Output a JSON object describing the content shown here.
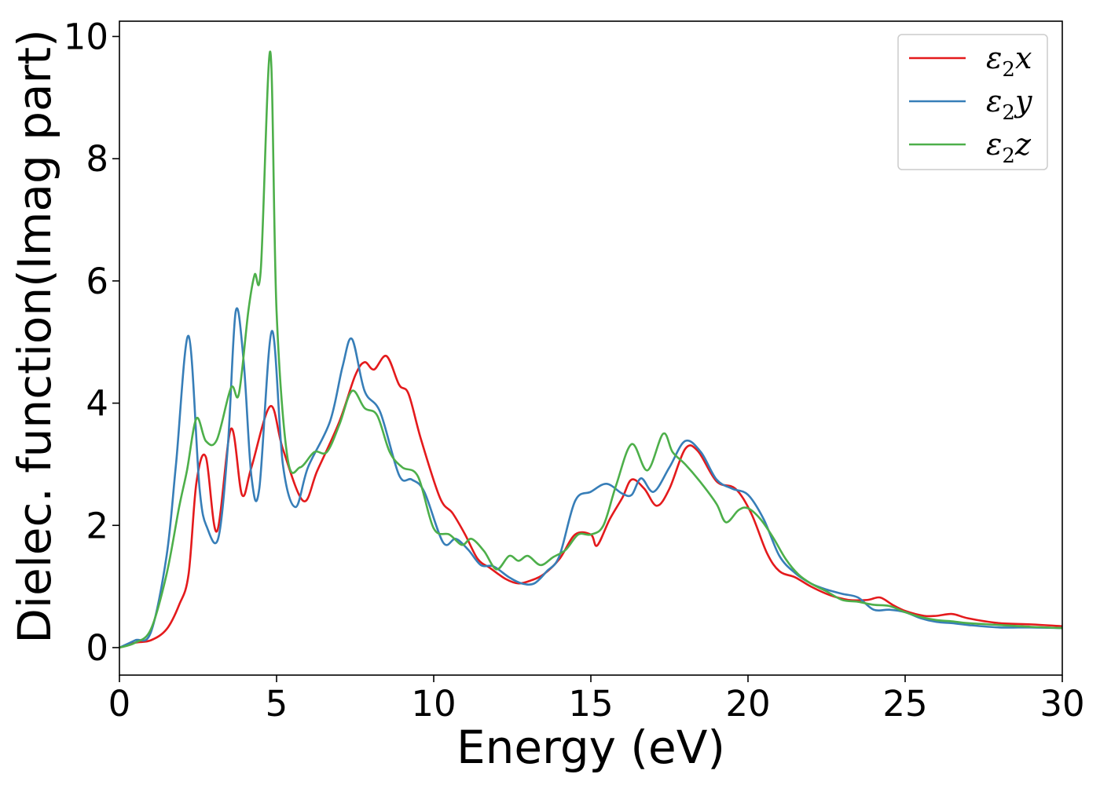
{
  "chart_data": {
    "type": "line",
    "xlabel": "Energy (eV)",
    "ylabel": "Dielec. function(Imag part)",
    "xlim": [
      0,
      30
    ],
    "ylim": [
      -0.45,
      10.25
    ],
    "xticks": [
      0,
      5,
      10,
      15,
      20,
      25,
      30
    ],
    "yticks": [
      0,
      2,
      4,
      6,
      8,
      10
    ],
    "grid": false,
    "legend_position": "top-right",
    "series": [
      {
        "name": "ε2x",
        "legend_base": "ε",
        "legend_sub": "2",
        "legend_suffix": "x",
        "color": "#e41a1c",
        "x": [
          0,
          0.5,
          1.0,
          1.5,
          1.9,
          2.2,
          2.45,
          2.75,
          3.1,
          3.55,
          3.9,
          4.2,
          4.8,
          5.2,
          5.85,
          6.3,
          7.0,
          7.5,
          7.8,
          8.1,
          8.5,
          8.9,
          9.2,
          9.6,
          10.2,
          10.6,
          11.0,
          11.4,
          11.8,
          12.3,
          12.7,
          13.1,
          13.5,
          14.0,
          14.5,
          15.0,
          15.2,
          15.6,
          16.0,
          16.3,
          16.7,
          17.1,
          17.5,
          18.0,
          18.4,
          19.0,
          19.6,
          20.1,
          20.6,
          21.0,
          21.5,
          22.0,
          22.6,
          23.2,
          23.8,
          24.2,
          24.6,
          25.0,
          25.6,
          26.0,
          26.5,
          27.0,
          28.0,
          29.0,
          30.0
        ],
        "values": [
          0,
          0.08,
          0.12,
          0.3,
          0.7,
          1.2,
          2.7,
          3.12,
          1.9,
          3.58,
          2.5,
          2.95,
          3.95,
          3.25,
          2.4,
          2.9,
          3.7,
          4.45,
          4.67,
          4.55,
          4.77,
          4.3,
          4.15,
          3.4,
          2.45,
          2.2,
          1.85,
          1.45,
          1.3,
          1.12,
          1.05,
          1.1,
          1.2,
          1.45,
          1.85,
          1.85,
          1.67,
          2.1,
          2.45,
          2.75,
          2.6,
          2.32,
          2.6,
          3.25,
          3.22,
          2.72,
          2.6,
          2.2,
          1.55,
          1.25,
          1.15,
          1.0,
          0.86,
          0.78,
          0.78,
          0.82,
          0.7,
          0.6,
          0.52,
          0.52,
          0.55,
          0.48,
          0.4,
          0.38,
          0.35
        ]
      },
      {
        "name": "ε2y",
        "legend_base": "ε",
        "legend_sub": "2",
        "legend_suffix": "y",
        "color": "#377eb8",
        "x": [
          0,
          0.5,
          1.0,
          1.5,
          1.8,
          2.2,
          2.55,
          2.8,
          3.15,
          3.45,
          3.7,
          3.95,
          4.2,
          4.45,
          4.85,
          5.2,
          5.6,
          6.0,
          6.7,
          7.1,
          7.4,
          7.8,
          8.3,
          8.9,
          9.3,
          9.7,
          10.3,
          10.7,
          11.1,
          11.5,
          11.9,
          12.4,
          12.8,
          13.2,
          13.6,
          14.0,
          14.5,
          15.0,
          15.5,
          16.0,
          16.3,
          16.6,
          17.0,
          17.5,
          18.0,
          18.5,
          19.0,
          19.5,
          20.0,
          20.5,
          21.0,
          21.5,
          22.0,
          22.5,
          23.0,
          23.5,
          24.0,
          24.5,
          25.0,
          25.5,
          26.0,
          26.5,
          27.0,
          28.0,
          29.0,
          30.0
        ],
        "values": [
          0,
          0.12,
          0.25,
          1.5,
          3.0,
          5.1,
          2.6,
          1.95,
          1.8,
          3.3,
          5.5,
          4.7,
          2.8,
          2.6,
          5.18,
          3.0,
          2.3,
          2.95,
          3.7,
          4.6,
          5.05,
          4.2,
          3.85,
          2.82,
          2.75,
          2.55,
          1.72,
          1.78,
          1.6,
          1.35,
          1.33,
          1.15,
          1.05,
          1.05,
          1.25,
          1.5,
          2.4,
          2.55,
          2.68,
          2.52,
          2.5,
          2.77,
          2.55,
          2.95,
          3.38,
          3.2,
          2.75,
          2.6,
          2.5,
          2.1,
          1.5,
          1.22,
          1.05,
          0.95,
          0.88,
          0.82,
          0.62,
          0.62,
          0.58,
          0.48,
          0.42,
          0.4,
          0.37,
          0.33,
          0.33,
          0.32
        ]
      },
      {
        "name": "ε2z",
        "legend_base": "ε",
        "legend_sub": "2",
        "legend_suffix": "z",
        "color": "#4daf4a",
        "x": [
          0,
          0.5,
          1.0,
          1.5,
          1.9,
          2.15,
          2.45,
          2.75,
          3.1,
          3.55,
          3.8,
          4.1,
          4.3,
          4.5,
          4.8,
          5.0,
          5.35,
          5.75,
          6.2,
          6.6,
          7.0,
          7.4,
          7.8,
          8.2,
          8.6,
          9.0,
          9.5,
          10.0,
          10.5,
          10.9,
          11.2,
          11.6,
          12.0,
          12.4,
          12.7,
          13.0,
          13.4,
          13.8,
          14.2,
          14.6,
          15.0,
          15.4,
          15.8,
          16.3,
          16.8,
          17.3,
          17.6,
          18.0,
          18.5,
          19.0,
          19.3,
          19.7,
          20.0,
          20.4,
          20.8,
          21.2,
          21.6,
          22.0,
          22.5,
          23.0,
          23.5,
          24.0,
          24.5,
          25.0,
          25.5,
          26.0,
          26.5,
          27.0,
          28.0,
          29.0,
          30.0
        ],
        "values": [
          0,
          0.08,
          0.3,
          1.2,
          2.3,
          2.9,
          3.75,
          3.38,
          3.4,
          4.25,
          4.15,
          5.5,
          6.1,
          6.2,
          9.75,
          5.5,
          3.1,
          2.95,
          3.2,
          3.2,
          3.65,
          4.2,
          3.92,
          3.8,
          3.2,
          2.95,
          2.8,
          1.95,
          1.85,
          1.68,
          1.78,
          1.58,
          1.28,
          1.5,
          1.42,
          1.5,
          1.35,
          1.48,
          1.6,
          1.85,
          1.85,
          2.0,
          2.65,
          3.33,
          2.9,
          3.5,
          3.2,
          3.0,
          2.7,
          2.35,
          2.05,
          2.25,
          2.28,
          2.1,
          1.8,
          1.45,
          1.2,
          1.05,
          0.92,
          0.78,
          0.75,
          0.7,
          0.68,
          0.58,
          0.5,
          0.45,
          0.43,
          0.4,
          0.37,
          0.34,
          0.32
        ]
      }
    ]
  }
}
